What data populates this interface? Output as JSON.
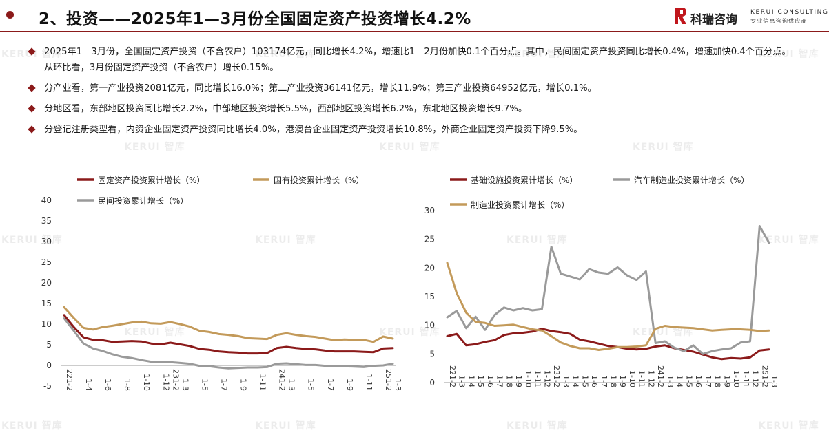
{
  "header": {
    "title": "2、投资——2025年1—3月份全国固定资产投资增长4.2%",
    "logo_cn": "科瑞咨询",
    "logo_en": "KERUI CONSULTING",
    "logo_tagline": "专业信息咨询供应商"
  },
  "watermark": "KERUI 智库",
  "bullets": [
    "2025年1—3月份，全国固定资产投资（不含农户）103174亿元，同比增长4.2%，增速比1—2月份加快0.1个百分点。其中，民间固定资产投资同比增长0.4%，增速加快0.4个百分点。从环比看，3月份固定资产投资（不含农户）增长0.15%。",
    "分产业看，第一产业投资2081亿元，同比增长16.0%；第二产业投资36141亿元，增长11.9%；第三产业投资64952亿元，增长0.1%。",
    "分地区看，东部地区投资同比增长2.2%，中部地区投资增长5.5%，西部地区投资增长6.2%，东北地区投资增长9.7%。",
    "分登记注册类型看，内资企业固定资产投资同比增长4.0%，港澳台企业固定资产投资增长10.8%，外商企业固定资产投资下降9.5%。"
  ],
  "chart_data": [
    {
      "type": "line",
      "categories": [
        "221-2",
        "1-3",
        "1-4",
        "1-5",
        "1-6",
        "1-7",
        "1-8",
        "1-9",
        "1-10",
        "1-11",
        "1-12",
        "231-2",
        "1-3",
        "1-4",
        "1-5",
        "1-6",
        "1-7",
        "1-8",
        "1-9",
        "1-10",
        "1-11",
        "1-12",
        "241-2",
        "1-3",
        "1-4",
        "1-5",
        "1-6",
        "1-7",
        "1-8",
        "1-9",
        "1-10",
        "1-11",
        "1-12",
        "251-2",
        "1-3"
      ],
      "x_tick_labels": [
        "221-2",
        "1-4",
        "1-6",
        "1-8",
        "1-10",
        "1-12",
        "231-2",
        "1-3",
        "1-5",
        "1-7",
        "1-9",
        "1-11",
        "241-2",
        "1-3",
        "1-5",
        "1-7",
        "1-9",
        "1-11",
        "251-2",
        "1-3"
      ],
      "ylim": [
        -5,
        40
      ],
      "yticks": [
        -5,
        0,
        5,
        10,
        15,
        20,
        25,
        30,
        35,
        40
      ],
      "series": [
        {
          "name": "固定资产投资累计增长（%）",
          "color": "#8b1a1a",
          "values": [
            12.2,
            9.3,
            6.8,
            6.2,
            6.1,
            5.7,
            5.8,
            5.9,
            5.8,
            5.3,
            5.1,
            5.5,
            5.1,
            4.7,
            4.0,
            3.8,
            3.4,
            3.2,
            3.1,
            2.9,
            2.9,
            3.0,
            4.2,
            4.5,
            4.2,
            4.0,
            3.9,
            3.6,
            3.4,
            3.4,
            3.4,
            3.3,
            3.2,
            4.1,
            4.2
          ]
        },
        {
          "name": "国有投资累计增长（%）",
          "color": "#c39a5a",
          "values": [
            14.1,
            11.5,
            9.1,
            8.7,
            9.3,
            9.6,
            10.0,
            10.4,
            10.6,
            10.2,
            10.1,
            10.5,
            10.0,
            9.4,
            8.4,
            8.1,
            7.6,
            7.4,
            7.1,
            6.6,
            6.5,
            6.4,
            7.4,
            7.8,
            7.4,
            7.1,
            6.9,
            6.5,
            6.1,
            6.3,
            6.2,
            6.2,
            5.7,
            7.0,
            6.5
          ]
        },
        {
          "name": "民间投资累计增长（%）",
          "color": "#9a9a9a",
          "values": [
            11.4,
            8.4,
            5.3,
            4.1,
            3.5,
            2.7,
            2.1,
            1.8,
            1.3,
            0.9,
            0.9,
            0.8,
            0.6,
            0.4,
            -0.1,
            -0.2,
            -0.5,
            -0.7,
            -0.6,
            -0.5,
            -0.5,
            -0.4,
            0.4,
            0.5,
            0.3,
            0.1,
            0.1,
            -0.1,
            -0.2,
            -0.2,
            -0.3,
            -0.4,
            -0.1,
            0.0,
            0.4
          ]
        }
      ]
    },
    {
      "type": "line",
      "categories": [
        "221-2",
        "1-3",
        "1-4",
        "1-5",
        "1-6",
        "1-7",
        "1-8",
        "1-9",
        "1-10",
        "1-11",
        "1-12",
        "231-2",
        "1-3",
        "1-4",
        "1-5",
        "1-6",
        "1-7",
        "1-8",
        "1-9",
        "1-10",
        "1-11",
        "1-12",
        "241-2",
        "1-3",
        "1-4",
        "1-5",
        "1-6",
        "1-7",
        "1-8",
        "1-9",
        "1-10",
        "1-11",
        "1-12",
        "251-2",
        "1-3"
      ],
      "x_tick_labels": [
        "221-2",
        "1-3",
        "1-4",
        "1-5",
        "1-6",
        "1-7",
        "1-8",
        "1-9",
        "1-10",
        "1-11",
        "1-12",
        "231-2",
        "1-3",
        "1-4",
        "1-5",
        "1-6",
        "1-7",
        "1-8",
        "1-9",
        "1-10",
        "1-11",
        "1-12",
        "241-2",
        "1-3",
        "1-4",
        "1-5",
        "1-6",
        "1-7",
        "1-8",
        "1-9",
        "1-10",
        "1-11",
        "1-12",
        "251-2",
        "1-3"
      ],
      "ylim": [
        0,
        30
      ],
      "yticks": [
        0,
        5,
        10,
        15,
        20,
        25,
        30
      ],
      "series": [
        {
          "name": "基础设施投资累计增长（%）",
          "color": "#8b1a1a",
          "values": [
            8.1,
            8.5,
            6.5,
            6.7,
            7.1,
            7.4,
            8.3,
            8.6,
            8.7,
            8.9,
            9.4,
            9.0,
            8.8,
            8.5,
            7.5,
            7.2,
            6.8,
            6.4,
            6.2,
            5.9,
            5.8,
            5.9,
            6.3,
            6.5,
            6.0,
            5.7,
            5.4,
            4.9,
            4.4,
            4.1,
            4.3,
            4.2,
            4.4,
            5.6,
            5.8
          ]
        },
        {
          "name": "汽车制造业投资累计增长（%）",
          "color": "#9a9a9a",
          "values": [
            11.4,
            12.5,
            9.5,
            11.5,
            9.2,
            11.8,
            13.1,
            12.6,
            13.0,
            12.6,
            12.8,
            23.7,
            19.0,
            18.5,
            18.0,
            19.8,
            19.2,
            19.0,
            20.1,
            18.7,
            17.9,
            19.4,
            6.9,
            7.2,
            6.1,
            5.5,
            6.5,
            5.0,
            5.5,
            5.8,
            6.0,
            7.0,
            7.2,
            27.3,
            24.4
          ]
        },
        {
          "name": "制造业投资累计增长（%）",
          "color": "#c39a5a",
          "values": [
            20.9,
            15.6,
            12.2,
            10.6,
            10.4,
            9.9,
            10.0,
            10.1,
            9.7,
            9.3,
            9.1,
            8.1,
            7.0,
            6.4,
            6.0,
            6.0,
            5.7,
            5.9,
            6.2,
            6.2,
            6.3,
            6.5,
            9.4,
            9.9,
            9.7,
            9.6,
            9.5,
            9.3,
            9.1,
            9.2,
            9.3,
            9.3,
            9.2,
            9.0,
            9.1
          ]
        }
      ]
    }
  ]
}
